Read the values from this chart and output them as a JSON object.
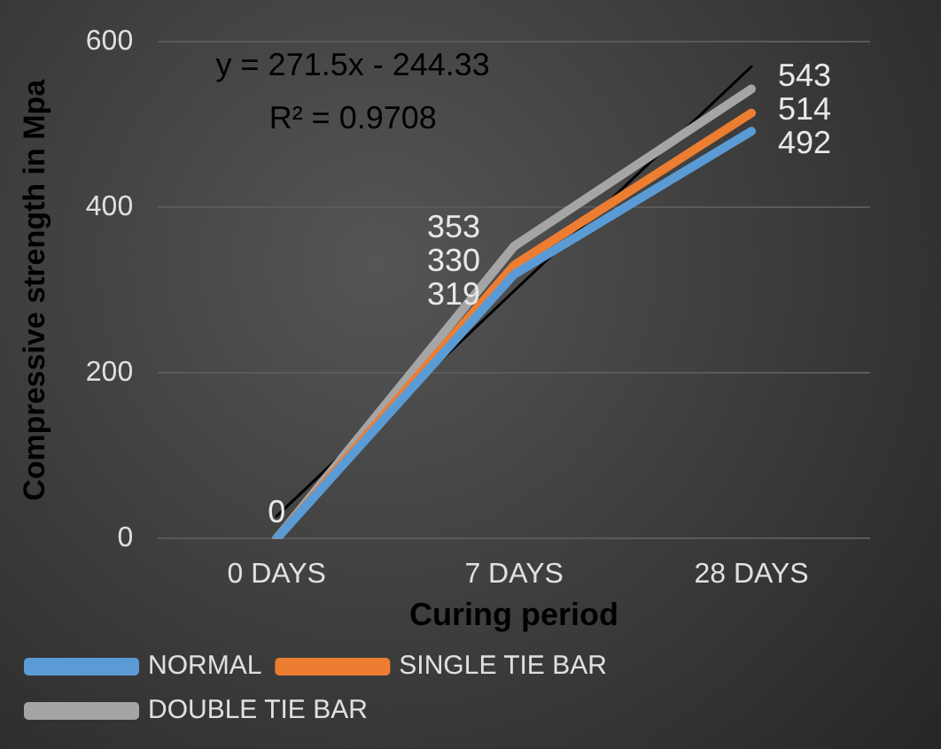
{
  "chart_data": {
    "type": "line",
    "xlabel": "Curing period",
    "ylabel": "Compressive strength in Mpa",
    "categories": [
      "0 DAYS",
      "7 DAYS",
      "28 DAYS"
    ],
    "series": [
      {
        "name": "NORMAL",
        "color": "#5b9bd5",
        "values": [
          0,
          319,
          492
        ],
        "value_labels": [
          "0",
          "319",
          "492"
        ]
      },
      {
        "name": "SINGLE TIE BAR",
        "color": "#ed7d31",
        "values": [
          0,
          330,
          514
        ],
        "value_labels": [
          null,
          "330",
          "514"
        ]
      },
      {
        "name": "DOUBLE TIE BAR",
        "color": "#a5a5a5",
        "values": [
          0,
          353,
          543
        ],
        "value_labels": [
          null,
          "353",
          "543"
        ]
      },
      {
        "type": "line",
        "color": "#000000",
        "values": [
          27,
          299,
          570
        ]
      }
    ],
    "ylim": [
      0,
      600
    ],
    "yticks": [
      0,
      200,
      400,
      600
    ],
    "grid": "y",
    "legend": "bottom",
    "marker": "none",
    "annotations": [
      "y = 271.5x - 244.33",
      "R² = 0.9708"
    ]
  }
}
